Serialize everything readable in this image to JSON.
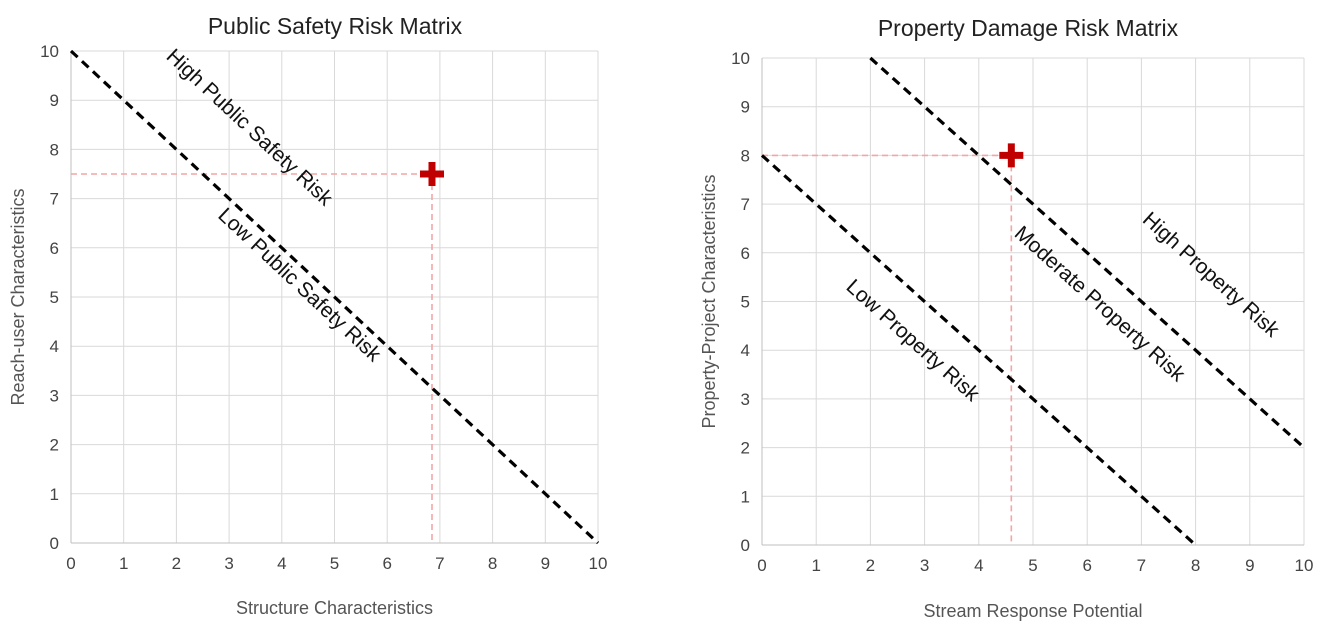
{
  "chart_data": [
    {
      "type": "line",
      "title": "Public Safety Risk Matrix",
      "xlabel": "Structure Characteristics",
      "ylabel": "Reach-user Characteristics",
      "xlim": [
        0,
        10
      ],
      "ylim": [
        0,
        10
      ],
      "xticks": [
        "0",
        "1",
        "2",
        "3",
        "4",
        "5",
        "6",
        "7",
        "8",
        "9",
        "10"
      ],
      "yticks": [
        "0",
        "1",
        "2",
        "3",
        "4",
        "5",
        "6",
        "7",
        "8",
        "9",
        "10"
      ],
      "grid": true,
      "boundaries": [
        {
          "x": [
            0,
            10
          ],
          "y": [
            10,
            0
          ],
          "style": "dashed"
        }
      ],
      "point": {
        "x": 6.85,
        "y": 7.5,
        "marker": "plus",
        "color": "#c00000"
      },
      "guide_color": "#f4a6a6",
      "regions": [
        {
          "label": "High Public Safety Risk",
          "x": 3.3,
          "y": 8.35
        },
        {
          "label": "Low Public Safety Risk",
          "x": 4.25,
          "y": 5.15
        }
      ]
    },
    {
      "type": "line",
      "title": "Property Damage Risk Matrix",
      "xlabel": "Stream Response Potential",
      "ylabel": "Property-Project Characteristics",
      "xlim": [
        0,
        10
      ],
      "ylim": [
        0,
        10
      ],
      "xticks": [
        "0",
        "1",
        "2",
        "3",
        "4",
        "5",
        "6",
        "7",
        "8",
        "9",
        "10"
      ],
      "yticks": [
        "0",
        "1",
        "2",
        "3",
        "4",
        "5",
        "6",
        "7",
        "8",
        "9",
        "10"
      ],
      "grid": true,
      "boundaries": [
        {
          "x": [
            0,
            8
          ],
          "y": [
            8,
            0
          ],
          "style": "dashed"
        },
        {
          "x": [
            2,
            10
          ],
          "y": [
            10,
            2
          ],
          "style": "dashed"
        }
      ],
      "point": {
        "x": 4.6,
        "y": 8.0,
        "marker": "plus",
        "color": "#c00000"
      },
      "guide_color": "#f4a6a6",
      "regions": [
        {
          "label": "Low Property Risk",
          "x": 2.7,
          "y": 4.1
        },
        {
          "label": "Moderate Property Risk",
          "x": 6.15,
          "y": 4.85
        },
        {
          "label": "High Property Risk",
          "x": 8.2,
          "y": 5.45
        }
      ]
    }
  ]
}
